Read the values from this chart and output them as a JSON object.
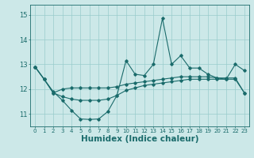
{
  "xlabel": "Humidex (Indice chaleur)",
  "background_color": "#cce8e8",
  "grid_color": "#99cccc",
  "line_color": "#1a6b6b",
  "xlim": [
    -0.5,
    23.5
  ],
  "ylim": [
    10.5,
    15.4
  ],
  "yticks": [
    11,
    12,
    13,
    14,
    15
  ],
  "xticks": [
    0,
    1,
    2,
    3,
    4,
    5,
    6,
    7,
    8,
    9,
    10,
    11,
    12,
    13,
    14,
    15,
    16,
    17,
    18,
    19,
    20,
    21,
    22,
    23
  ],
  "series1_x": [
    0,
    1,
    2,
    3,
    4,
    5,
    6,
    7,
    8,
    9,
    10,
    11,
    12,
    13,
    14,
    15,
    16,
    17,
    18,
    19,
    20,
    21,
    22,
    23
  ],
  "series1_y": [
    12.9,
    12.4,
    11.9,
    11.55,
    11.15,
    10.8,
    10.78,
    10.8,
    11.1,
    11.75,
    13.15,
    12.6,
    12.55,
    13.0,
    14.85,
    13.0,
    13.35,
    12.85,
    12.85,
    12.6,
    12.45,
    12.4,
    13.0,
    12.75
  ],
  "series2_x": [
    0,
    1,
    2,
    3,
    4,
    5,
    6,
    7,
    8,
    9,
    10,
    11,
    12,
    13,
    14,
    15,
    16,
    17,
    18,
    19,
    20,
    21,
    22,
    23
  ],
  "series2_y": [
    12.9,
    12.4,
    11.85,
    12.0,
    12.05,
    12.05,
    12.05,
    12.05,
    12.05,
    12.1,
    12.2,
    12.25,
    12.3,
    12.35,
    12.4,
    12.45,
    12.5,
    12.5,
    12.5,
    12.5,
    12.45,
    12.45,
    12.45,
    11.85
  ],
  "series3_x": [
    0,
    1,
    2,
    3,
    4,
    5,
    6,
    7,
    8,
    9,
    10,
    11,
    12,
    13,
    14,
    15,
    16,
    17,
    18,
    19,
    20,
    21,
    22,
    23
  ],
  "series3_y": [
    12.9,
    12.4,
    11.85,
    11.7,
    11.6,
    11.55,
    11.55,
    11.55,
    11.6,
    11.75,
    11.95,
    12.05,
    12.15,
    12.2,
    12.25,
    12.3,
    12.35,
    12.4,
    12.4,
    12.4,
    12.4,
    12.4,
    12.4,
    11.85
  ],
  "xtick_fontsize": 5.0,
  "ytick_fontsize": 6.0,
  "xlabel_fontsize": 7.5
}
